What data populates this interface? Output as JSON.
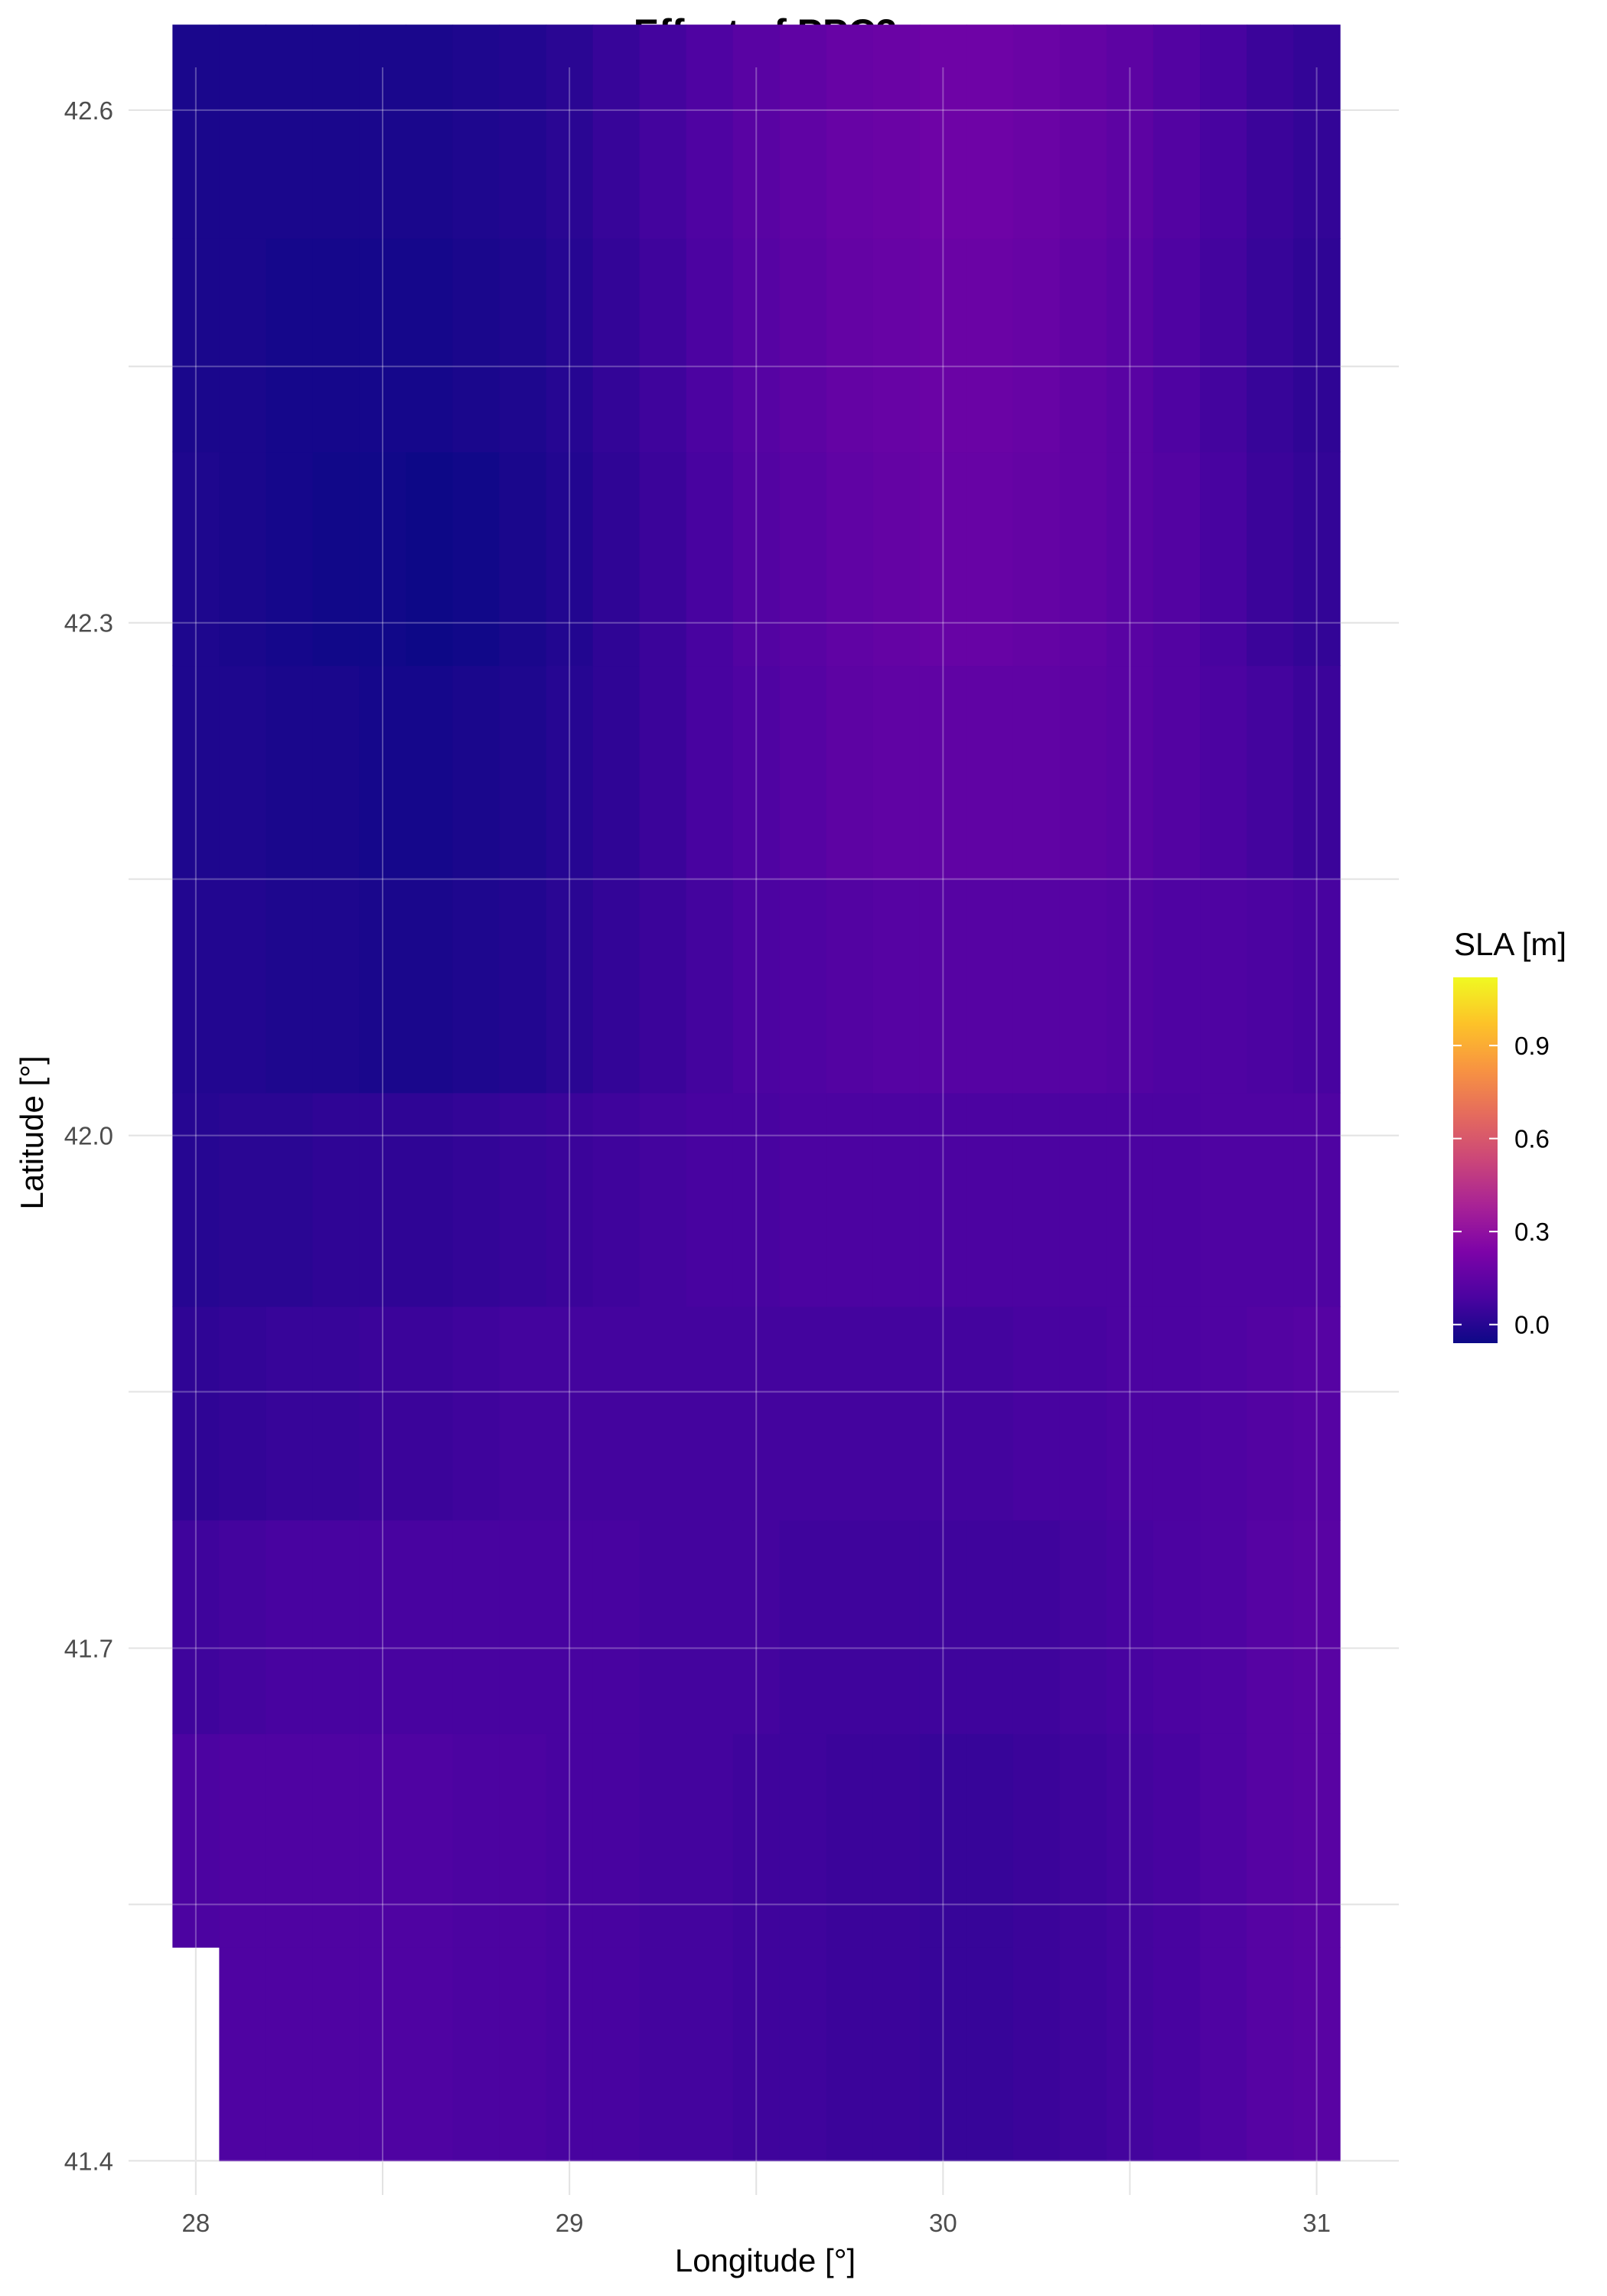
{
  "chart_data": {
    "type": "heatmap",
    "title": "Effect of PPC3",
    "xlabel": "Longitude [°]",
    "ylabel": "Latitude [°]",
    "x_ticks": [
      28,
      29,
      30,
      31
    ],
    "y_ticks": [
      41.4,
      41.7,
      42.0,
      42.3,
      42.6
    ],
    "x_tick_labels": [
      "28",
      "29",
      "30",
      "31"
    ],
    "y_tick_labels": [
      "41.4",
      "41.7",
      "42.0",
      "42.3",
      "42.6"
    ],
    "xlim": [
      27.82,
      31.22
    ],
    "ylim": [
      41.38,
      42.625
    ],
    "grid": true,
    "colorscale": "plasma",
    "legend": {
      "title": "SLA [m]",
      "position": "right",
      "range": [
        -0.06,
        1.12
      ],
      "ticks": [
        0.0,
        0.3,
        0.6,
        0.9
      ],
      "tick_labels": [
        "0.0",
        "0.3",
        "0.6",
        "0.9"
      ]
    },
    "cell_size": {
      "lon": 0.125,
      "lat": 0.125
    },
    "lon_centers": [
      28.0,
      28.125,
      28.25,
      28.375,
      28.5,
      28.625,
      28.75,
      28.875,
      29.0,
      29.125,
      29.25,
      29.375,
      29.5,
      29.625,
      29.75,
      29.875,
      30.0,
      30.125,
      30.25,
      30.375,
      30.5,
      30.625,
      30.75,
      30.875,
      31.0
    ],
    "lat_centers": [
      41.4625,
      41.5875,
      41.7125,
      41.8375,
      41.9625,
      42.0875,
      42.2125,
      42.3375,
      42.4625,
      42.5875
    ],
    "values": [
      [
        null,
        0.1,
        0.1,
        0.1,
        0.1,
        0.1,
        0.09,
        0.09,
        0.08,
        0.08,
        0.07,
        0.07,
        0.06,
        0.06,
        0.05,
        0.05,
        0.04,
        0.04,
        0.05,
        0.06,
        0.07,
        0.08,
        0.1,
        0.12,
        0.13
      ],
      [
        0.09,
        0.1,
        0.1,
        0.1,
        0.1,
        0.1,
        0.09,
        0.09,
        0.08,
        0.08,
        0.07,
        0.07,
        0.06,
        0.06,
        0.05,
        0.05,
        0.04,
        0.04,
        0.05,
        0.06,
        0.07,
        0.08,
        0.1,
        0.12,
        0.13
      ],
      [
        0.06,
        0.07,
        0.08,
        0.08,
        0.08,
        0.08,
        0.08,
        0.08,
        0.08,
        0.08,
        0.07,
        0.07,
        0.07,
        0.06,
        0.06,
        0.06,
        0.06,
        0.06,
        0.06,
        0.07,
        0.08,
        0.09,
        0.1,
        0.12,
        0.13
      ],
      [
        0.02,
        0.03,
        0.04,
        0.04,
        0.05,
        0.05,
        0.06,
        0.07,
        0.07,
        0.07,
        0.07,
        0.07,
        0.07,
        0.07,
        0.07,
        0.07,
        0.07,
        0.07,
        0.08,
        0.08,
        0.09,
        0.09,
        0.1,
        0.11,
        0.12
      ],
      [
        0.0,
        0.01,
        0.01,
        0.02,
        0.02,
        0.02,
        0.03,
        0.04,
        0.05,
        0.06,
        0.07,
        0.08,
        0.08,
        0.09,
        0.09,
        0.09,
        0.09,
        0.09,
        0.09,
        0.09,
        0.09,
        0.09,
        0.1,
        0.1,
        0.1
      ],
      [
        -0.01,
        -0.01,
        -0.02,
        -0.02,
        -0.03,
        -0.03,
        -0.02,
        -0.01,
        0.01,
        0.03,
        0.05,
        0.07,
        0.09,
        0.1,
        0.11,
        0.12,
        0.12,
        0.12,
        0.12,
        0.12,
        0.11,
        0.1,
        0.1,
        0.09,
        0.08
      ],
      [
        -0.02,
        -0.02,
        -0.03,
        -0.03,
        -0.04,
        -0.04,
        -0.03,
        -0.02,
        0.0,
        0.02,
        0.05,
        0.08,
        0.1,
        0.12,
        0.14,
        0.15,
        0.15,
        0.15,
        0.15,
        0.14,
        0.13,
        0.11,
        0.09,
        0.07,
        0.05
      ],
      [
        -0.02,
        -0.03,
        -0.04,
        -0.05,
        -0.05,
        -0.06,
        -0.05,
        -0.03,
        -0.01,
        0.02,
        0.05,
        0.08,
        0.11,
        0.13,
        0.15,
        0.16,
        0.17,
        0.17,
        0.16,
        0.15,
        0.13,
        0.11,
        0.08,
        0.05,
        0.03
      ],
      [
        -0.03,
        -0.03,
        -0.04,
        -0.04,
        -0.04,
        -0.04,
        -0.03,
        -0.02,
        0.0,
        0.03,
        0.06,
        0.09,
        0.12,
        0.14,
        0.16,
        0.17,
        0.18,
        0.18,
        0.17,
        0.15,
        0.13,
        0.1,
        0.07,
        0.04,
        0.02
      ],
      [
        -0.03,
        -0.03,
        -0.03,
        -0.03,
        -0.03,
        -0.03,
        -0.02,
        -0.01,
        0.01,
        0.04,
        0.07,
        0.1,
        0.13,
        0.15,
        0.17,
        0.18,
        0.19,
        0.19,
        0.18,
        0.16,
        0.14,
        0.11,
        0.08,
        0.05,
        0.03
      ]
    ]
  }
}
